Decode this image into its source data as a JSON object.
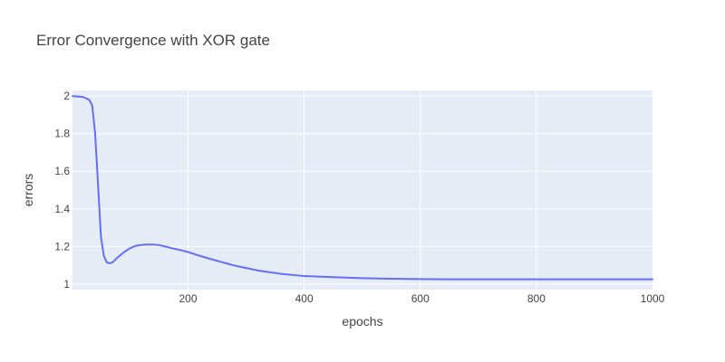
{
  "colors": {
    "plot_bg": "#E5ECF6",
    "line": "#636EFA",
    "grid": "#FFFFFF",
    "text": "#444444"
  },
  "chart_data": {
    "type": "line",
    "title": "Error Convergence with XOR gate",
    "xlabel": "epochs",
    "ylabel": "errors",
    "xlim": [
      1,
      1000
    ],
    "ylim": [
      0.97,
      2.03
    ],
    "xticks": [
      200,
      400,
      600,
      800,
      1000
    ],
    "yticks": [
      1,
      1.2,
      1.4,
      1.6,
      1.8,
      2
    ],
    "xtick_labels": [
      "200",
      "400",
      "600",
      "800",
      "1000"
    ],
    "ytick_labels": [
      "1",
      "1.2",
      "1.4",
      "1.6",
      "1.8",
      "2"
    ],
    "grid": true,
    "legend": "none",
    "series": [
      {
        "x": [
          1,
          10,
          20,
          30,
          35,
          40,
          45,
          50,
          55,
          60,
          65,
          70,
          75,
          80,
          90,
          100,
          110,
          120,
          130,
          140,
          150,
          160,
          170,
          180,
          190,
          200,
          220,
          240,
          260,
          280,
          300,
          320,
          340,
          360,
          380,
          400,
          450,
          500,
          550,
          600,
          650,
          700,
          750,
          800,
          850,
          900,
          950,
          1000
        ],
        "y": [
          2.0,
          1.998,
          1.995,
          1.98,
          1.95,
          1.8,
          1.53,
          1.25,
          1.15,
          1.115,
          1.11,
          1.115,
          1.13,
          1.145,
          1.17,
          1.19,
          1.203,
          1.208,
          1.21,
          1.21,
          1.207,
          1.2,
          1.192,
          1.185,
          1.178,
          1.17,
          1.15,
          1.132,
          1.115,
          1.098,
          1.085,
          1.072,
          1.063,
          1.054,
          1.048,
          1.042,
          1.036,
          1.031,
          1.028,
          1.026,
          1.025,
          1.025,
          1.025,
          1.025,
          1.025,
          1.025,
          1.025,
          1.025
        ]
      }
    ]
  }
}
